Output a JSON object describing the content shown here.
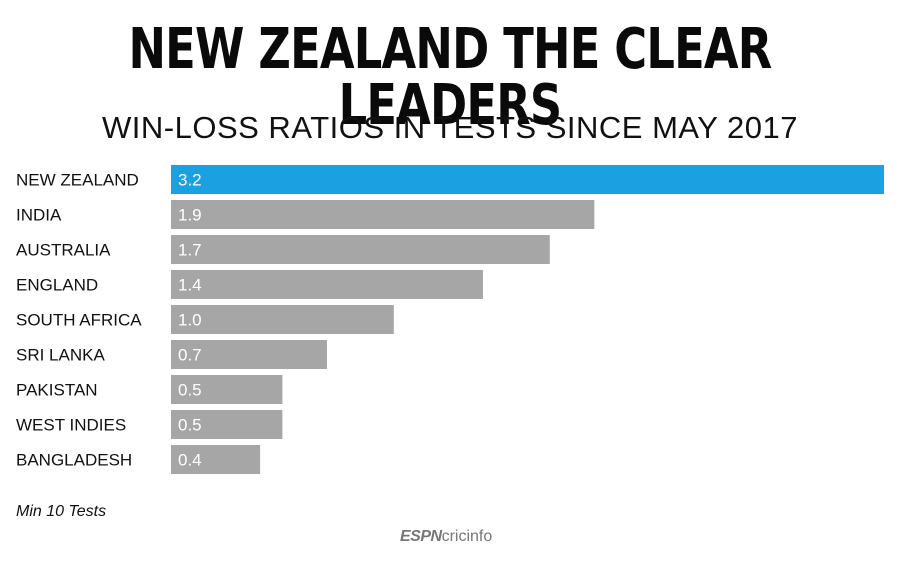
{
  "chart_data": {
    "type": "bar",
    "orientation": "horizontal",
    "title": "NEW ZEALAND THE CLEAR LEADERS",
    "subtitle": "WIN-LOSS RATIOS IN TESTS SINCE MAY 2017",
    "categories": [
      "NEW ZEALAND",
      "INDIA",
      "AUSTRALIA",
      "ENGLAND",
      "SOUTH AFRICA",
      "SRI LANKA",
      "PAKISTAN",
      "WEST INDIES",
      "BANGLADESH"
    ],
    "values": [
      3.2,
      1.9,
      1.7,
      1.4,
      1.0,
      0.7,
      0.5,
      0.5,
      0.4
    ],
    "value_labels": [
      "3.2",
      "1.9",
      "1.7",
      "1.4",
      "1.0",
      "0.7",
      "0.5",
      "0.5",
      "0.4"
    ],
    "xlim": [
      0,
      3.2
    ],
    "highlight_index": 0,
    "colors": {
      "highlight": "#1ba1e2",
      "default": "#a6a6a6",
      "bar_label": "#ffffff"
    },
    "grid": false,
    "legend": "none"
  },
  "footnote": "Min 10 Tests",
  "logo": {
    "espn": "ESPN",
    "cricinfo": "cricinfo"
  }
}
